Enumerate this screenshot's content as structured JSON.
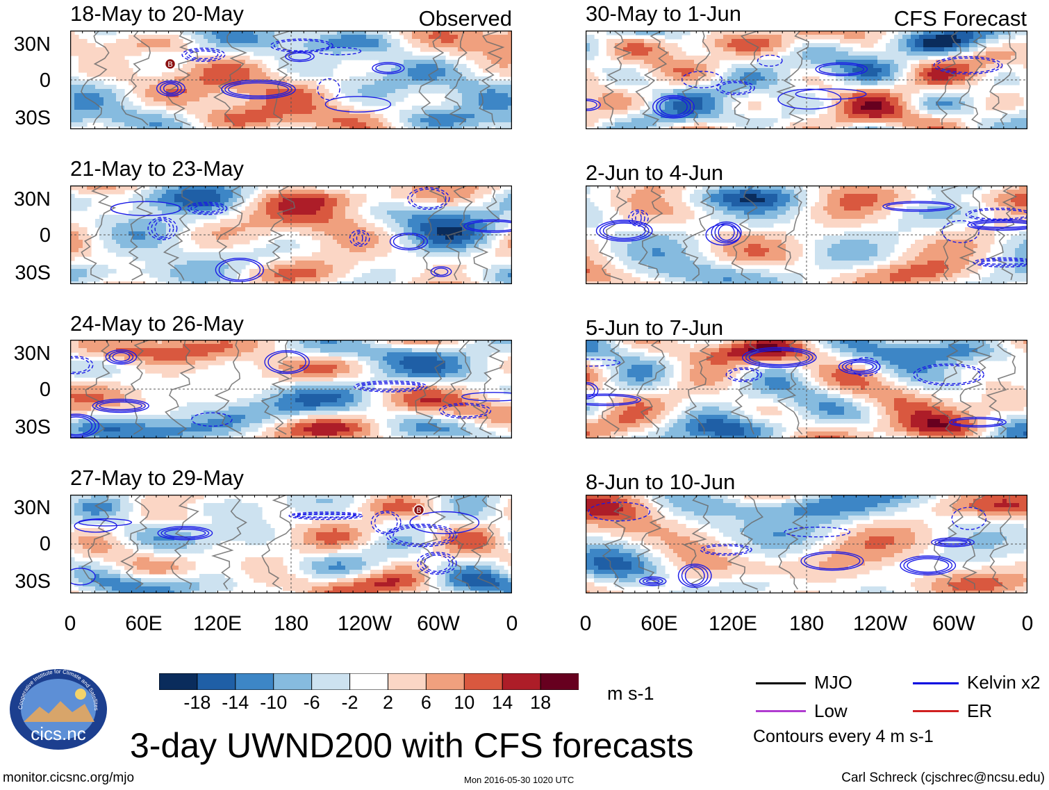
{
  "panels": {
    "left": [
      {
        "title": "18-May to 20-May",
        "tag": "Observed"
      },
      {
        "title": "21-May to 23-May"
      },
      {
        "title": "24-May to 26-May"
      },
      {
        "title": "27-May to 29-May"
      }
    ],
    "right": [
      {
        "title": "30-May to 1-Jun",
        "tag": "CFS Forecast"
      },
      {
        "title": "2-Jun to 4-Jun"
      },
      {
        "title": "5-Jun to 7-Jun"
      },
      {
        "title": "8-Jun to 10-Jun"
      }
    ]
  },
  "lat_labels": [
    "30N",
    "0",
    "30S"
  ],
  "lon_labels": [
    "0",
    "60E",
    "120E",
    "180",
    "120W",
    "60W",
    "0"
  ],
  "storm_marker": "B",
  "colorbar": {
    "labels": [
      "-18",
      "-14",
      "-10",
      "-6",
      "-2",
      "2",
      "6",
      "10",
      "14",
      "18"
    ],
    "colors": [
      "#0a2c5c",
      "#1f5fa6",
      "#3d86c6",
      "#86bbdf",
      "#cde2f0",
      "#ffffff",
      "#fbd6c5",
      "#f0a07e",
      "#d9583f",
      "#ad1d28",
      "#67001f"
    ],
    "units": "m s-1"
  },
  "legend": {
    "mjo": {
      "label": "MJO",
      "color": "#000000"
    },
    "low": {
      "label": "Low",
      "color": "#b03cd0"
    },
    "kelvin": {
      "label": "Kelvin x2",
      "color": "#0000e0"
    },
    "er": {
      "label": "ER",
      "color": "#d02020"
    },
    "contour_note": "Contours every 4 m s-1"
  },
  "logo_text": "cics.nc",
  "logo_ring_text": "Cooperative Institute for Climate and Satellites",
  "main_title": "3-day UWND200 with CFS forecasts",
  "footer": {
    "url": "monitor.cicsnc.org/mjo",
    "timestamp": "Mon 2016-05-30 1020 UTC",
    "author": "Carl Schreck (cjschrec@ncsu.edu)"
  }
}
